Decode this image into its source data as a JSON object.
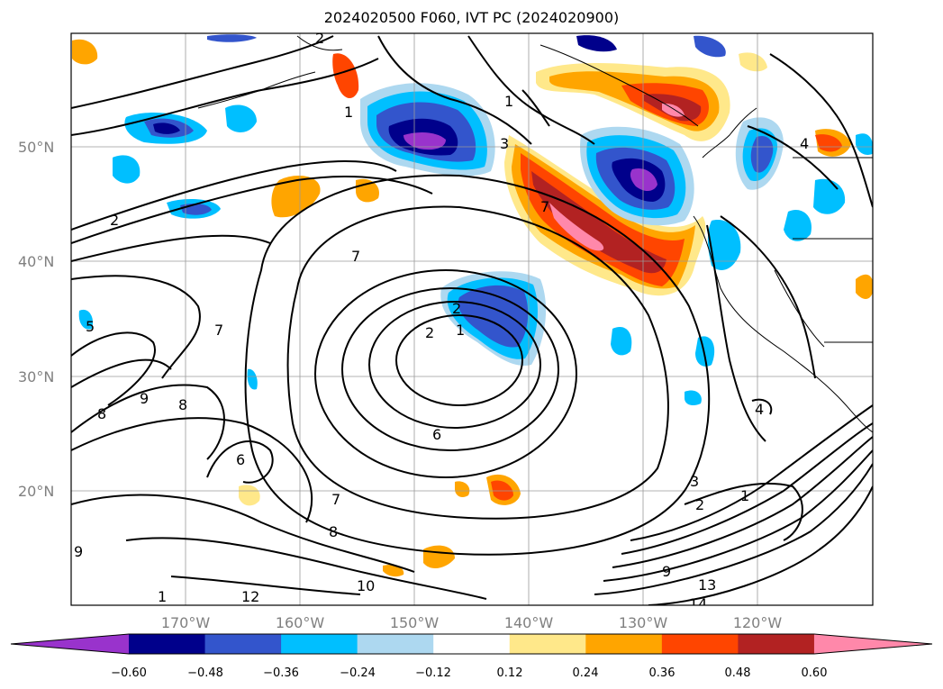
{
  "title": "2024020500 F060, IVT PC (2024020900)",
  "map": {
    "lat_labels": [
      "50°N",
      "40°N",
      "30°N",
      "20°N"
    ],
    "lon_labels": [
      "170°W",
      "160°W",
      "150°W",
      "140°W",
      "130°W",
      "120°W"
    ],
    "contour_labels": [
      "2",
      "7",
      "1",
      "3",
      "2",
      "1",
      "6",
      "7",
      "8",
      "9",
      "8",
      "6",
      "7",
      "8",
      "10",
      "12",
      "9",
      "1",
      "3",
      "2",
      "1",
      "9",
      "13",
      "14",
      "4",
      "4",
      "7",
      "5",
      "2",
      "1",
      "2"
    ]
  },
  "colorbar": {
    "ticks": [
      "−0.60",
      "−0.48",
      "−0.36",
      "−0.24",
      "−0.12",
      "0.12",
      "0.24",
      "0.36",
      "0.48",
      "0.60"
    ],
    "colors": [
      "#9933cc",
      "#00008b",
      "#3355cc",
      "#00bfff",
      "#add8f0",
      "#ffffff",
      "#ffe88a",
      "#ffa500",
      "#ff4500",
      "#b22222",
      "#ff88aa"
    ]
  }
}
